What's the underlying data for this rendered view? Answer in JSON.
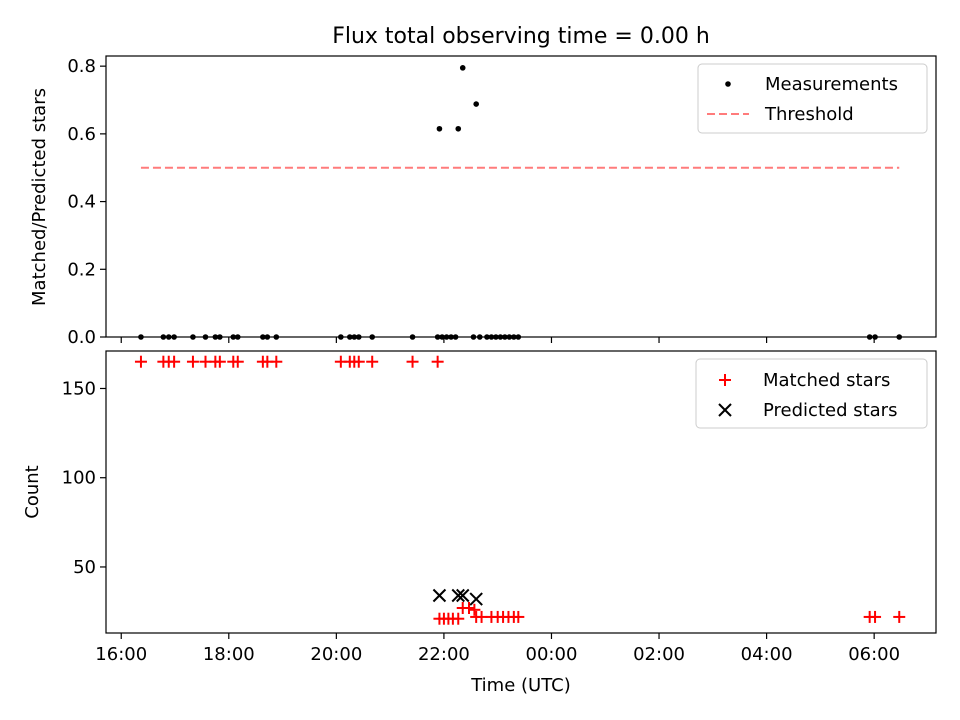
{
  "chart_data": [
    {
      "type": "scatter",
      "title": "Flux total observing time = 0.00 h",
      "ylabel": "Matched/Predicted stars",
      "xlabel": "",
      "ylim": [
        0.0,
        0.83
      ],
      "yticks": [
        0.0,
        0.2,
        0.4,
        0.6,
        0.8
      ],
      "ytick_labels": [
        "0.0",
        "0.2",
        "0.4",
        "0.6",
        "0.8"
      ],
      "legend_position": "top-right",
      "grid": false,
      "series": [
        {
          "name": "Measurements",
          "marker": "dot",
          "color": "#000000",
          "points": [
            [
              "16:22",
              0
            ],
            [
              "16:47",
              0
            ],
            [
              "16:53",
              0
            ],
            [
              "16:59",
              0
            ],
            [
              "17:20",
              0
            ],
            [
              "17:34",
              0
            ],
            [
              "17:45",
              0
            ],
            [
              "17:50",
              0
            ],
            [
              "18:05",
              0
            ],
            [
              "18:10",
              0
            ],
            [
              "18:38",
              0
            ],
            [
              "18:43",
              0
            ],
            [
              "18:53",
              0
            ],
            [
              "20:05",
              0
            ],
            [
              "20:15",
              0
            ],
            [
              "20:20",
              0
            ],
            [
              "20:25",
              0
            ],
            [
              "20:40",
              0
            ],
            [
              "21:25",
              0
            ],
            [
              "21:53",
              0
            ],
            [
              "21:58",
              0
            ],
            [
              "22:03",
              0
            ],
            [
              "22:08",
              0
            ],
            [
              "22:13",
              0
            ],
            [
              "22:33",
              0
            ],
            [
              "22:40",
              0
            ],
            [
              "22:48",
              0
            ],
            [
              "22:53",
              0
            ],
            [
              "22:58",
              0
            ],
            [
              "23:03",
              0
            ],
            [
              "23:08",
              0
            ],
            [
              "23:13",
              0
            ],
            [
              "23:18",
              0
            ],
            [
              "23:23",
              0
            ],
            [
              "21:55",
              0.615
            ],
            [
              "22:16",
              0.615
            ],
            [
              "22:21",
              0.795
            ],
            [
              "22:36",
              0.688
            ],
            [
              "05:55",
              0
            ],
            [
              "06:01",
              0
            ],
            [
              "06:28",
              0
            ]
          ]
        },
        {
          "name": "Threshold",
          "line": "dashed",
          "color": "#ff7b7b",
          "x": [
            "16:22",
            "06:28"
          ],
          "y": [
            0.5,
            0.5
          ]
        }
      ]
    },
    {
      "type": "scatter",
      "ylabel": "Count",
      "xlabel": "Time (UTC)",
      "ylim": [
        13,
        171
      ],
      "yticks": [
        50,
        100,
        150
      ],
      "ytick_labels": [
        "50",
        "100",
        "150"
      ],
      "xticks": [
        "16:00",
        "18:00",
        "20:00",
        "22:00",
        "00:00",
        "02:00",
        "04:00",
        "06:00"
      ],
      "x_range": [
        "15:43",
        "07:09"
      ],
      "legend_position": "top-right",
      "grid": false,
      "series": [
        {
          "name": "Matched stars",
          "marker": "plus",
          "color": "#ff0000",
          "points": [
            [
              "16:22",
              165
            ],
            [
              "16:47",
              165
            ],
            [
              "16:53",
              165
            ],
            [
              "16:59",
              165
            ],
            [
              "17:20",
              165
            ],
            [
              "17:34",
              165
            ],
            [
              "17:45",
              165
            ],
            [
              "17:50",
              165
            ],
            [
              "18:05",
              165
            ],
            [
              "18:10",
              165
            ],
            [
              "18:38",
              165
            ],
            [
              "18:43",
              165
            ],
            [
              "18:53",
              165
            ],
            [
              "20:05",
              165
            ],
            [
              "20:15",
              165
            ],
            [
              "20:20",
              165
            ],
            [
              "20:25",
              165
            ],
            [
              "20:40",
              165
            ],
            [
              "21:25",
              165
            ],
            [
              "21:53",
              165
            ],
            [
              "21:55",
              21
            ],
            [
              "22:00",
              21
            ],
            [
              "22:05",
              21
            ],
            [
              "22:10",
              21
            ],
            [
              "22:16",
              21
            ],
            [
              "22:21",
              27
            ],
            [
              "22:28",
              27
            ],
            [
              "22:34",
              26
            ],
            [
              "22:36",
              22
            ],
            [
              "22:42",
              22
            ],
            [
              "22:53",
              22
            ],
            [
              "23:00",
              22
            ],
            [
              "23:06",
              22
            ],
            [
              "23:12",
              22
            ],
            [
              "23:18",
              22
            ],
            [
              "23:23",
              22
            ],
            [
              "05:55",
              22
            ],
            [
              "06:01",
              22
            ],
            [
              "06:28",
              22
            ]
          ]
        },
        {
          "name": "Predicted stars",
          "marker": "x",
          "color": "#000000",
          "points": [
            [
              "21:55",
              34
            ],
            [
              "22:16",
              34
            ],
            [
              "22:21",
              34
            ],
            [
              "22:36",
              32
            ]
          ]
        }
      ]
    }
  ]
}
